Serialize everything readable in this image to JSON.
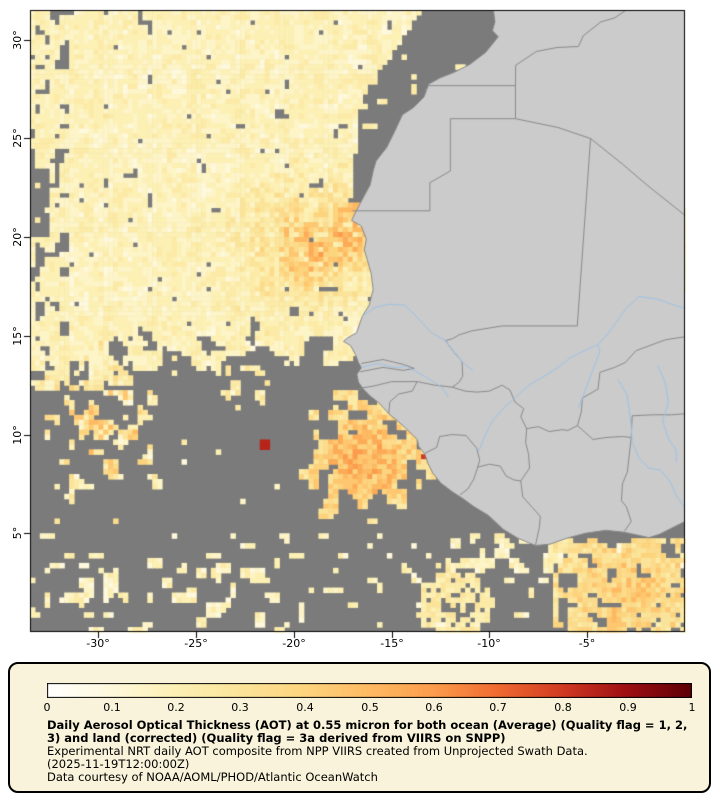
{
  "map": {
    "extent": {
      "lon_min": -33.5,
      "lon_max": 0,
      "lat_min": 0,
      "lat_max": 31.5
    },
    "x_ticks": [
      {
        "lon": -30,
        "label": "-30°"
      },
      {
        "lon": -25,
        "label": "-25°"
      },
      {
        "lon": -20,
        "label": "-20°"
      },
      {
        "lon": -15,
        "label": "-15°"
      },
      {
        "lon": -10,
        "label": "-10°"
      },
      {
        "lon": -5,
        "label": "-5°"
      }
    ],
    "y_ticks": [
      {
        "lat": 30,
        "label": "30°"
      },
      {
        "lat": 25,
        "label": "25°"
      },
      {
        "lat": 20,
        "label": "20°"
      },
      {
        "lat": 15,
        "label": "15°"
      },
      {
        "lat": 10,
        "label": "10°"
      },
      {
        "lat": 5,
        "label": "5°"
      }
    ],
    "colors": {
      "ocean_nodata": "#7b7b7b",
      "land": "#cbcbcb",
      "coast": "#8a8a8a",
      "border": "#8a8a8a",
      "river": "#9dc3e6",
      "frame": "#000000"
    }
  },
  "colorbar": {
    "ticks": [
      "0",
      "0.1",
      "0.2",
      "0.3",
      "0.4",
      "0.5",
      "0.6",
      "0.7",
      "0.8",
      "0.9",
      "1"
    ],
    "stops": [
      {
        "v": 0.0,
        "c": "#ffffff"
      },
      {
        "v": 0.1,
        "c": "#fef8dc"
      },
      {
        "v": 0.2,
        "c": "#fcf0b4"
      },
      {
        "v": 0.3,
        "c": "#fbe49a"
      },
      {
        "v": 0.4,
        "c": "#fdd47e"
      },
      {
        "v": 0.5,
        "c": "#feba62"
      },
      {
        "v": 0.6,
        "c": "#fc9c4c"
      },
      {
        "v": 0.7,
        "c": "#ef6a30"
      },
      {
        "v": 0.8,
        "c": "#d03a22"
      },
      {
        "v": 0.9,
        "c": "#9e0e12"
      },
      {
        "v": 1.0,
        "c": "#5c0006"
      }
    ]
  },
  "legend": {
    "background": "#f8f3da",
    "caption_bold": "Daily Aerosol Optical Thickness (AOT) at 0.55 micron for both ocean (Average) (Quality flag = 1, 2, 3) and land (corrected) (Quality flag = 3a derived from VIIRS on SNPP)",
    "line_experimental": "Experimental NRT daily AOT composite from NPP VIIRS created from Unprojected Swath Data.",
    "line_timestamp": "(2025-11-19T12:00:00Z)",
    "line_courtesy": "Data courtesy of NOAA/AOML/PHOD/Atlantic OceanWatch"
  }
}
